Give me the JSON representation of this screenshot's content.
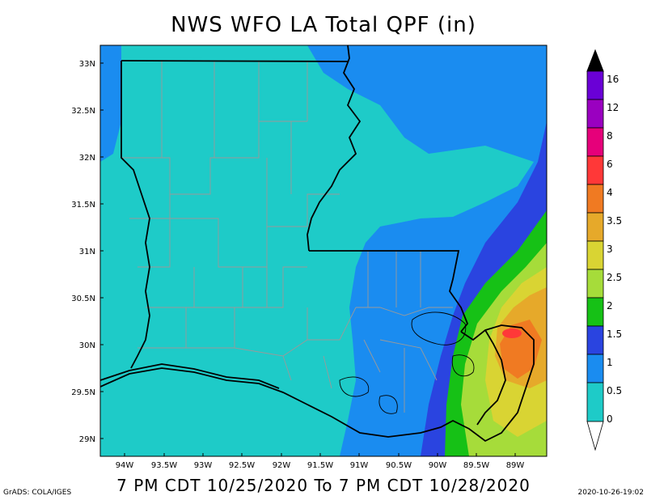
{
  "map": {
    "title": "NWS WFO LA Total QPF (in)",
    "valid_period": "7 PM CDT 10/25/2020 To 7 PM CDT 10/28/2020",
    "credit": "GrADS: COLA/IGES",
    "timestamp": "2020-10-26-19:02",
    "lat_labels": [
      "33N",
      "32.5N",
      "32N",
      "31.5N",
      "31N",
      "30.5N",
      "30N",
      "29.5N",
      "29N"
    ],
    "lon_labels": [
      "94W",
      "93.5W",
      "93W",
      "92.5W",
      "92W",
      "91.5W",
      "91W",
      "90.5W",
      "90W",
      "89.5W",
      "89W"
    ]
  },
  "legend": {
    "labels": [
      "16",
      "12",
      "8",
      "6",
      "4",
      "3.5",
      "3",
      "2.5",
      "2",
      "1.5",
      "1",
      "0.5",
      "0"
    ],
    "colors": [
      "#6a00d6",
      "#9a00c0",
      "#e6007a",
      "#ff3838",
      "#f07a22",
      "#e6a92a",
      "#d9d433",
      "#a6dc3a",
      "#16c116",
      "#2a44e0",
      "#1a8cf0",
      "#1ecbc8"
    ]
  },
  "colors": {
    "qpf_0_05": "#1ecbc8",
    "qpf_05_1": "#1a8cf0",
    "qpf_1_15": "#2a44e0",
    "qpf_15_2": "#16c116",
    "qpf_2_25": "#a6dc3a",
    "qpf_25_3": "#d9d433",
    "qpf_3_35": "#e6a92a",
    "qpf_35_4": "#f07a22",
    "qpf_4_6": "#ff3838"
  }
}
